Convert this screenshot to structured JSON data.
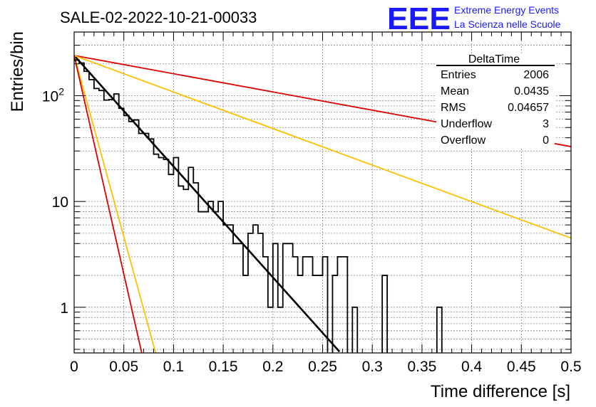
{
  "header": {
    "run_title": "SALE-02-2022-10-21-00033",
    "logo_text": "EEE",
    "project_line1": "Extreme Energy Events",
    "project_line2": "La Scienza nelle Scuole"
  },
  "stats_box": {
    "name": "DeltaTime",
    "rows": [
      {
        "label": "Entries",
        "value": "2006"
      },
      {
        "label": "Mean",
        "value": "0.0435"
      },
      {
        "label": "RMS",
        "value": "0.04657"
      },
      {
        "label": "Underflow",
        "value": "3"
      },
      {
        "label": "Overflow",
        "value": "0"
      }
    ]
  },
  "colors": {
    "histogram": "#000000",
    "fit": "#000000",
    "red_curves": "#dd0000",
    "yellow_curves": "#ffc000",
    "logo": "#1a1aff",
    "grid": "#888888"
  },
  "chart_data": {
    "type": "line",
    "xlabel": "Time difference [s]",
    "ylabel": "Entries/bin",
    "xlim": [
      0,
      0.5
    ],
    "ylim": [
      0.37,
      400
    ],
    "yscale": "log",
    "grid": true,
    "x_ticks": [
      "0",
      "0.05",
      "0.1",
      "0.15",
      "0.2",
      "0.25",
      "0.3",
      "0.35",
      "0.4",
      "0.45",
      "0.5"
    ],
    "y_ticks": [
      {
        "value": 1,
        "label": "1"
      },
      {
        "value": 10,
        "label": "10"
      },
      {
        "value": 100,
        "label": "10",
        "sup": "2"
      }
    ],
    "histogram": {
      "bin_width": 0.005,
      "x_start": 0,
      "counts": [
        217,
        204,
        170,
        142,
        117,
        112,
        91,
        92,
        104,
        76,
        65,
        57,
        59,
        44,
        44,
        39,
        28,
        26,
        25,
        18,
        26,
        14,
        13,
        21,
        15,
        8,
        8,
        10,
        8,
        10,
        6,
        6,
        4,
        4,
        2,
        5,
        6,
        5,
        3,
        1,
        4,
        1,
        4,
        4,
        3,
        2,
        3,
        3,
        2,
        2,
        3,
        0,
        2,
        3,
        3,
        0,
        1,
        0,
        0,
        0,
        0,
        0,
        2,
        0,
        0,
        0,
        0,
        0,
        0,
        0,
        0,
        0,
        0,
        1
      ]
    },
    "series": [
      {
        "role": "fit",
        "color": "#000000",
        "x": [
          0,
          0.267
        ],
        "y": [
          240,
          0.38
        ]
      },
      {
        "role": "red-slow",
        "color": "#dd0000",
        "x": [
          0,
          0.5
        ],
        "y": [
          240,
          33
        ]
      },
      {
        "role": "yellow-slow",
        "color": "#ffc000",
        "x": [
          0,
          0.5
        ],
        "y": [
          240,
          4.5
        ]
      },
      {
        "role": "yellow-fast",
        "color": "#ffc000",
        "x": [
          0,
          0.082
        ],
        "y": [
          240,
          0.37
        ]
      },
      {
        "role": "red-fast",
        "color": "#dd0000",
        "x": [
          0,
          0.068
        ],
        "y": [
          240,
          0.37
        ]
      }
    ]
  }
}
